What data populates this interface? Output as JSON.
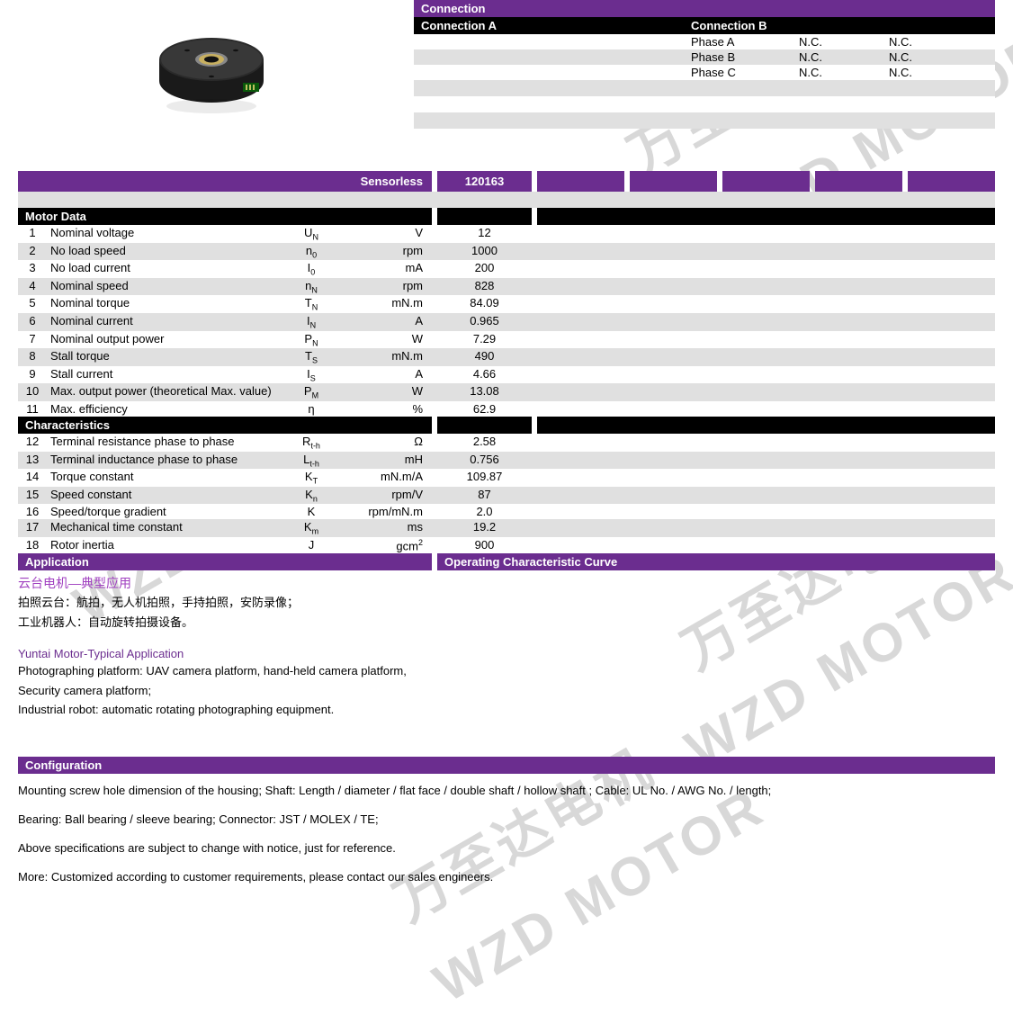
{
  "colors": {
    "purple": "#6b2d8f",
    "black": "#000000",
    "grey": "#e0e0e0",
    "white": "#ffffff",
    "wm": "#d8d8d8",
    "cn_purple": "#a040c0"
  },
  "connection": {
    "title": "Connection",
    "colA": "Connection A",
    "colB": "Connection B",
    "rows": [
      {
        "a": "",
        "b1": "Phase A",
        "b2": "N.C.",
        "b3": "N.C."
      },
      {
        "a": "",
        "b1": "Phase B",
        "b2": "N.C.",
        "b3": "N.C."
      },
      {
        "a": "",
        "b1": "Phase C",
        "b2": "N.C.",
        "b3": "N.C."
      }
    ]
  },
  "spec": {
    "header_label": "Sensorless",
    "header_val": "120163"
  },
  "motor_data": {
    "title": "Motor Data",
    "rows": [
      {
        "n": "1",
        "name": "Nominal voltage",
        "sym": "U",
        "sub": "N",
        "unit": "V",
        "val": "12"
      },
      {
        "n": "2",
        "name": "No load speed",
        "sym": "n",
        "sub": "0",
        "unit": "rpm",
        "val": "1000"
      },
      {
        "n": "3",
        "name": "No load current",
        "sym": "I",
        "sub": "0",
        "unit": "mA",
        "val": "200"
      },
      {
        "n": "4",
        "name": "Nominal speed",
        "sym": "n",
        "sub": "N",
        "unit": "rpm",
        "val": "828"
      },
      {
        "n": "5",
        "name": "Nominal torque",
        "sym": "T",
        "sub": "N",
        "unit": "mN.m",
        "val": "84.09"
      },
      {
        "n": "6",
        "name": "Nominal current",
        "sym": "I",
        "sub": "N",
        "unit": "A",
        "val": "0.965"
      },
      {
        "n": "7",
        "name": "Nominal output power",
        "sym": "P",
        "sub": "N",
        "unit": "W",
        "val": "7.29"
      },
      {
        "n": "8",
        "name": "Stall torque",
        "sym": "T",
        "sub": "S",
        "unit": "mN.m",
        "val": "490"
      },
      {
        "n": "9",
        "name": "Stall current",
        "sym": "I",
        "sub": "S",
        "unit": "A",
        "val": "4.66"
      },
      {
        "n": "10",
        "name": "Max. output power (theoretical Max. value)",
        "sym": "P",
        "sub": "M",
        "unit": "W",
        "val": "13.08"
      },
      {
        "n": "11",
        "name": "Max. efficiency",
        "sym": "η",
        "sub": "",
        "unit": "%",
        "val": "62.9"
      }
    ]
  },
  "characteristics": {
    "title": "Characteristics",
    "rows": [
      {
        "n": "12",
        "name": "Terminal resistance phase to phase",
        "sym": "R",
        "sub": "t-h",
        "unit": "Ω",
        "val": "2.58"
      },
      {
        "n": "13",
        "name": "Terminal inductance phase to phase",
        "sym": "L",
        "sub": "t-h",
        "unit": "mH",
        "val": "0.756"
      },
      {
        "n": "14",
        "name": "Torque constant",
        "sym": "K",
        "sub": "T",
        "unit": "mN.m/A",
        "val": "109.87"
      },
      {
        "n": "15",
        "name": "Speed constant",
        "sym": "K",
        "sub": "n",
        "unit": "rpm/V",
        "val": "87"
      },
      {
        "n": "16",
        "name": "Speed/torque gradient",
        "sym": "K",
        "sub": "",
        "unit": "rpm/mN.m",
        "val": "2.0"
      },
      {
        "n": "17",
        "name": "Mechanical time constant",
        "sym": "K",
        "sub": "m",
        "unit": "ms",
        "val": "19.2"
      },
      {
        "n": "18",
        "name": "Rotor inertia",
        "sym": "J",
        "sub": "",
        "unit_html": "gcm<sup>2</sup>",
        "val": "900"
      }
    ]
  },
  "application": {
    "title": "Application",
    "cn_title": "云台电机—典型应用",
    "cn_line1": "拍照云台：航拍，无人机拍照，手持拍照，安防录像；",
    "cn_line2": "工业机器人：自动旋转拍摄设备。",
    "en_title": "Yuntai Motor-Typical Application",
    "en_line1": "Photographing platform: UAV camera platform, hand-held camera platform,",
    "en_line2": "Security camera platform;",
    "en_line3": "Industrial robot: automatic rotating photographing equipment."
  },
  "curve": {
    "title": "Operating Characteristic Curve"
  },
  "configuration": {
    "title": "Configuration",
    "line1": "Mounting screw hole dimension of the housing; Shaft: Length / diameter / flat face / double shaft / hollow shaft ; Cable: UL No. / AWG No. / length;",
    "line2": "Bearing: Ball bearing / sleeve bearing; Connector: JST / MOLEX / TE;",
    "line3": "Above specifications are subject to change with notice, just for reference.",
    "line4": "More: Customized according to customer requirements, please contact our sales engineers."
  },
  "watermarks": {
    "cn": "万至达电机",
    "en": "WZD MOTOR"
  }
}
